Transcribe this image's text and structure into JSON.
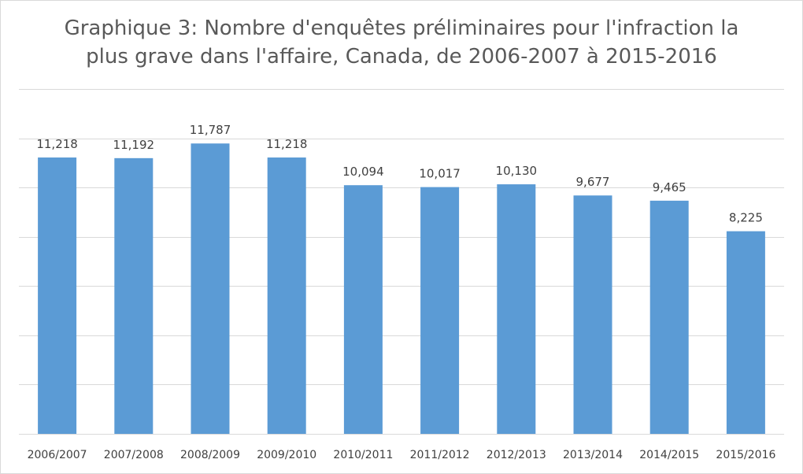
{
  "chart_data": {
    "type": "bar",
    "title_line1": "Graphique 3: Nombre d'enquêtes préliminaires pour l'infraction la",
    "title_line2": "plus grave dans l'affaire, Canada, de 2006-2007 à 2015-2016",
    "xlabel": "",
    "ylabel": "",
    "categories": [
      "2006/2007",
      "2007/2008",
      "2008/2009",
      "2009/2010",
      "2010/2011",
      "2011/2012",
      "2012/2013",
      "2013/2014",
      "2014/2015",
      "2015/2016"
    ],
    "values": [
      11218,
      11192,
      11787,
      11218,
      10094,
      10017,
      10130,
      9677,
      9465,
      8225
    ],
    "value_labels": [
      "11,218",
      "11,192",
      "11,787",
      "11,218",
      "10,094",
      "10,017",
      "10,130",
      "9,677",
      "9,465",
      "8,225"
    ],
    "ylim": [
      0,
      14000
    ],
    "gridlines": [
      2000,
      4000,
      6000,
      8000,
      10000,
      12000,
      14000
    ],
    "grid": true,
    "legend": "none",
    "y_tick_labels_visible": false,
    "colors": {
      "bar": "#5b9bd5",
      "grid": "#d9d9d9",
      "text": "#595959"
    }
  }
}
